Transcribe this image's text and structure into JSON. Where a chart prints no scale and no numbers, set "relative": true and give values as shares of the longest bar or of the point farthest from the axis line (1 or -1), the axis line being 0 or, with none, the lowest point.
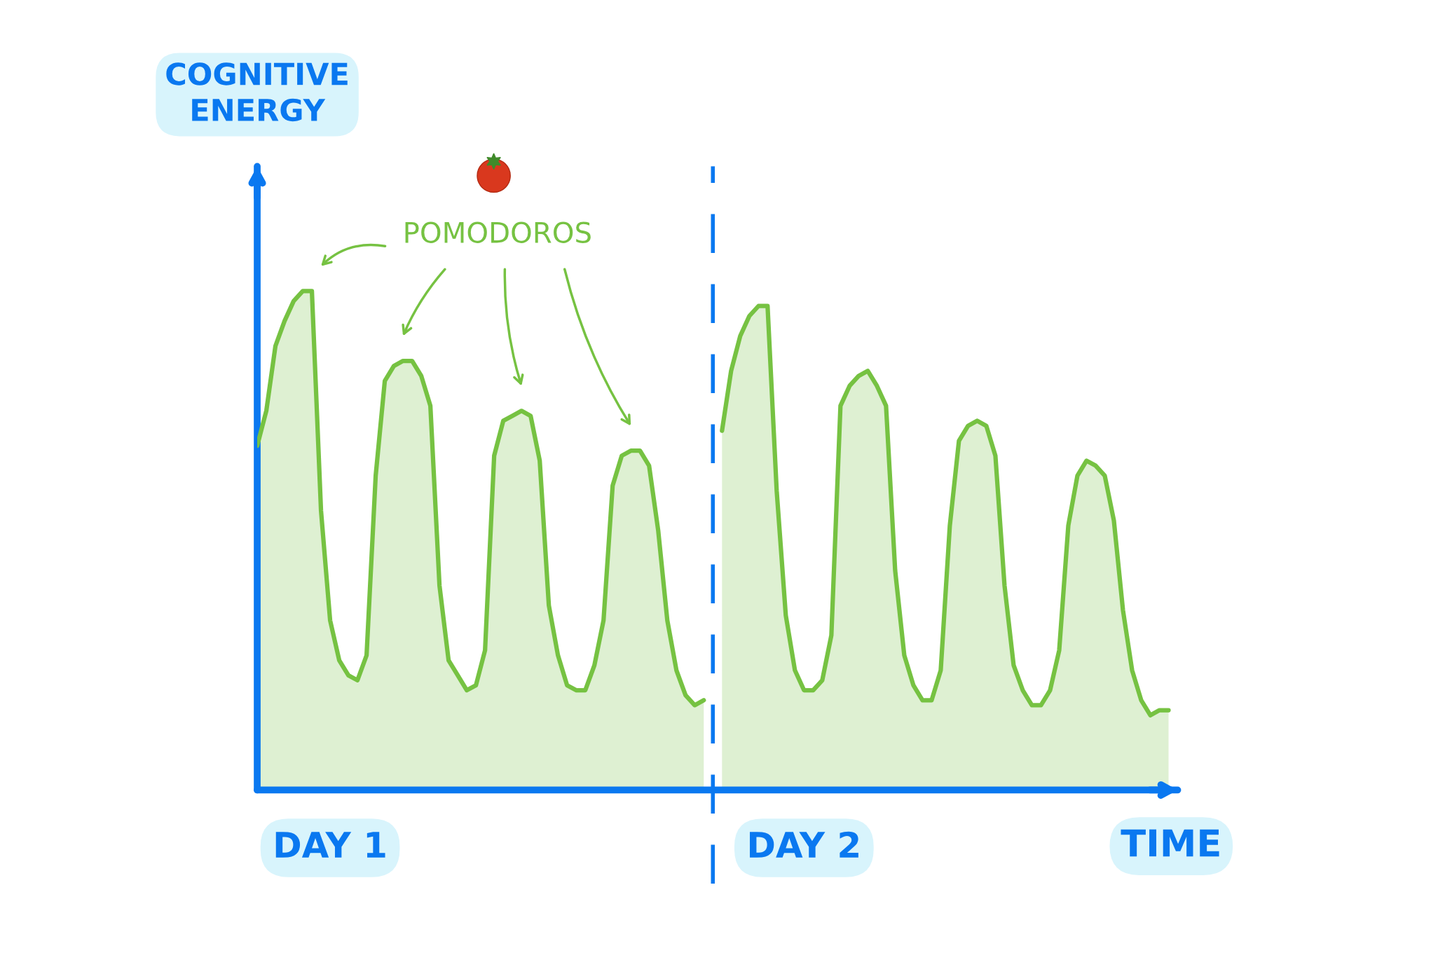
{
  "chart_data": {
    "type": "area",
    "relative": true,
    "xlabel": "TIME",
    "tick_labels": "x",
    "grid": false,
    "legend": false,
    "categories": [
      null,
      null,
      null,
      null,
      null,
      null,
      null,
      null,
      "DAY 1",
      null,
      null,
      null,
      null,
      null,
      null,
      null,
      null,
      null,
      null,
      null,
      null,
      null,
      null,
      null,
      null,
      null,
      null,
      null,
      null,
      null,
      null,
      null,
      null,
      null,
      null,
      null,
      null,
      null,
      null,
      null,
      null,
      null,
      null,
      null,
      null,
      null,
      null,
      null,
      null,
      null,
      null,
      null,
      null,
      null,
      null,
      null,
      null,
      null,
      null,
      null,
      "DAY 2",
      null,
      null,
      null,
      null,
      null,
      null,
      null,
      null,
      null,
      null,
      null,
      null,
      null,
      null,
      null,
      null,
      null,
      null,
      null,
      null,
      null,
      null,
      null,
      null,
      null,
      null,
      null,
      null,
      null,
      null,
      null,
      null,
      null,
      null,
      null,
      null,
      null,
      null,
      null,
      null
    ],
    "series": [
      {
        "color": "#76c242",
        "values": [
          0.69,
          0.76,
          0.89,
          0.94,
          0.98,
          1.0,
          1.0,
          0.56,
          0.34,
          0.26,
          0.23,
          0.22,
          0.27,
          0.63,
          0.82,
          0.85,
          0.86,
          0.86,
          0.83,
          0.77,
          0.41,
          0.26,
          0.23,
          0.2,
          0.21,
          0.28,
          0.67,
          0.74,
          0.75,
          0.76,
          0.75,
          0.66,
          0.37,
          0.27,
          0.21,
          0.2,
          0.2,
          0.25,
          0.34,
          0.61,
          0.67,
          0.68,
          0.68,
          0.65,
          0.52,
          0.34,
          0.24,
          0.19,
          0.17,
          0.18,
          null,
          null,
          null,
          null,
          null,
          null,
          null,
          null,
          null,
          null,
          null,
          null,
          null,
          null,
          null,
          null,
          null,
          null,
          null,
          null,
          null,
          null,
          null,
          null,
          null,
          null,
          null,
          null,
          null,
          null,
          null,
          null,
          null,
          null,
          null,
          null,
          null,
          null,
          null,
          null,
          null,
          null,
          null,
          null,
          null,
          null,
          null,
          null,
          null,
          null,
          null
        ]
      },
      {
        "color": "#76c242",
        "values": [
          null,
          null,
          null,
          null,
          null,
          null,
          null,
          null,
          null,
          null,
          null,
          null,
          null,
          null,
          null,
          null,
          null,
          null,
          null,
          null,
          null,
          null,
          null,
          null,
          null,
          null,
          null,
          null,
          null,
          null,
          null,
          null,
          null,
          null,
          null,
          null,
          null,
          null,
          null,
          null,
          null,
          null,
          null,
          null,
          null,
          null,
          null,
          null,
          null,
          null,
          null,
          0.72,
          0.84,
          0.91,
          0.95,
          0.97,
          0.97,
          0.6,
          0.35,
          0.24,
          0.2,
          0.2,
          0.22,
          0.31,
          0.77,
          0.81,
          0.83,
          0.84,
          0.81,
          0.77,
          0.44,
          0.27,
          0.21,
          0.18,
          0.18,
          0.24,
          0.53,
          0.7,
          0.73,
          0.74,
          0.73,
          0.67,
          0.41,
          0.25,
          0.2,
          0.17,
          0.17,
          0.2,
          0.28,
          0.53,
          0.63,
          0.66,
          0.65,
          0.63,
          0.54,
          0.36,
          0.24,
          0.18,
          0.15,
          0.16,
          0.16
        ]
      }
    ],
    "annotations": [
      "COGNITIVE ENERGY",
      "POMODOROS"
    ]
  }
}
